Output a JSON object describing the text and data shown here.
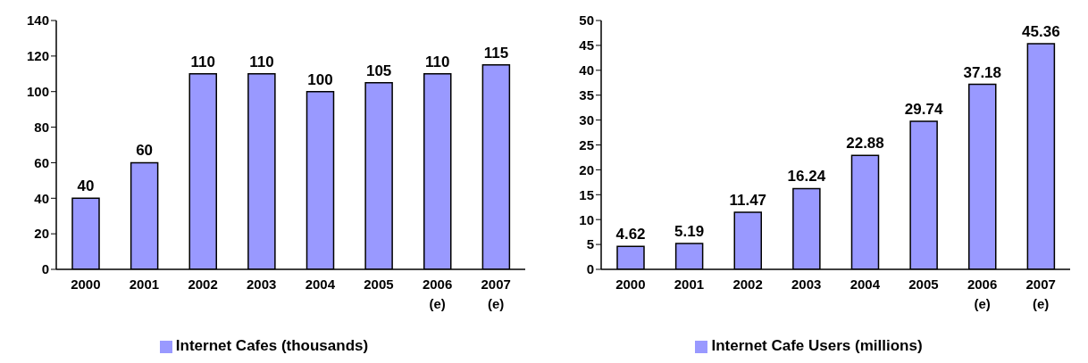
{
  "chart_data": [
    {
      "type": "bar",
      "categories": [
        "2000",
        "2001",
        "2002",
        "2003",
        "2004",
        "2005",
        "2006\n(e)",
        "2007\n(e)"
      ],
      "series": [
        {
          "name": "Internet Cafes (thousands)",
          "color": "#9999ff",
          "values": [
            40,
            60,
            110,
            110,
            100,
            105,
            110,
            115
          ]
        }
      ],
      "ylim": [
        0,
        140
      ],
      "yticks": [
        0,
        20,
        40,
        60,
        80,
        100,
        120,
        140
      ],
      "data_labels": true,
      "legend": "bottom",
      "grid": false
    },
    {
      "type": "bar",
      "categories": [
        "2000",
        "2001",
        "2002",
        "2003",
        "2004",
        "2005",
        "2006\n(e)",
        "2007\n(e)"
      ],
      "series": [
        {
          "name": "Internet Cafe Users (millions)",
          "color": "#9999ff",
          "values": [
            4.62,
            5.19,
            11.47,
            16.24,
            22.88,
            29.74,
            37.18,
            45.36
          ]
        }
      ],
      "ylim": [
        0,
        50
      ],
      "yticks": [
        0,
        5,
        10,
        15,
        20,
        25,
        30,
        35,
        40,
        45,
        50
      ],
      "data_labels": true,
      "legend": "bottom",
      "grid": false
    }
  ]
}
